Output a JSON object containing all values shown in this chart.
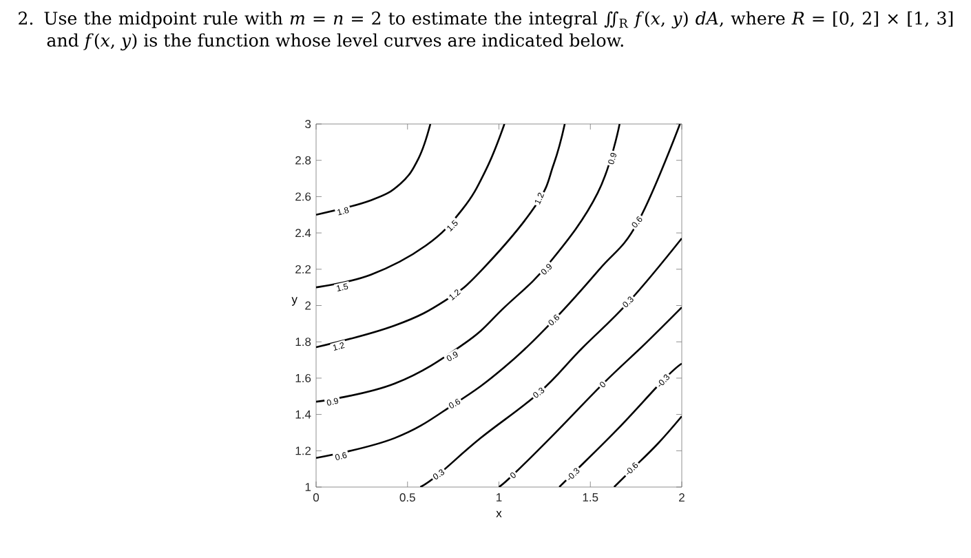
{
  "chart_data": {
    "type": "line",
    "title": "2. Use the midpoint rule with *m* = *n* = 2 to estimate the integral ∬$_{R}$ *f*(*x*, *y*) *dA*, where *R* = [0, 2] × [1, 3] and *f*(*x*, *y*) is the function whose level curves are indicated below.",
    "xlabel": "x",
    "ylabel": "y",
    "xlim": [
      0,
      2
    ],
    "ylim": [
      1,
      3
    ],
    "xticks": [
      0,
      0.5,
      1,
      1.5,
      2
    ],
    "yticks": [
      1,
      1.2,
      1.4,
      1.6,
      1.8,
      2,
      2.2,
      2.4,
      2.6,
      2.8,
      3
    ],
    "grid": false,
    "marker": "none",
    "line_style": "solid",
    "series": [
      {
        "color": "#000000",
        "x": [
          0,
          0.3,
          0.46,
          0.56,
          0.625
        ],
        "values": [
          2.5,
          2.58,
          2.67,
          2.81,
          3
        ]
      },
      {
        "color": "#000000",
        "x": [
          0,
          0.3,
          0.6,
          0.8,
          0.93,
          1.03
        ],
        "values": [
          2.1,
          2.17,
          2.33,
          2.53,
          2.75,
          3
        ]
      },
      {
        "color": "#000000",
        "x": [
          0,
          0.43,
          0.71,
          0.91,
          1.2,
          1.3,
          1.36
        ],
        "values": [
          1.77,
          1.89,
          2.03,
          2.2,
          2.55,
          2.78,
          3
        ]
      },
      {
        "color": "#000000",
        "x": [
          0,
          0.43,
          0.81,
          1.03,
          1.28,
          1.54,
          1.66
        ],
        "values": [
          1.47,
          1.57,
          1.79,
          1.99,
          2.24,
          2.62,
          3
        ]
      },
      {
        "color": "#000000",
        "x": [
          0,
          0.43,
          0.76,
          1.03,
          1.3,
          1.55,
          1.76,
          1.99
        ],
        "values": [
          1.16,
          1.27,
          1.46,
          1.66,
          1.92,
          2.2,
          2.46,
          3
        ]
      },
      {
        "color": "#000000",
        "x": [
          0.57,
          0.67,
          0.9,
          1.22,
          1.45,
          1.71,
          2
        ],
        "values": [
          1,
          1.07,
          1.27,
          1.52,
          1.76,
          2.02,
          2.37
        ]
      },
      {
        "color": "#000000",
        "x": [
          1,
          1.08,
          1.3,
          1.57,
          1.8,
          2
        ],
        "values": [
          1,
          1.07,
          1.29,
          1.57,
          1.79,
          1.99
        ]
      },
      {
        "color": "#000000",
        "x": [
          1.33,
          1.4,
          1.65,
          1.9,
          2
        ],
        "values": [
          1,
          1.07,
          1.32,
          1.59,
          1.68
        ]
      },
      {
        "color": "#000000",
        "x": [
          1.63,
          1.73,
          1.87,
          2
        ],
        "values": [
          1,
          1.1,
          1.24,
          1.39
        ]
      }
    ],
    "annotations": [
      {
        "text": "1.8",
        "x": 0.147,
        "y": 2.52
      },
      {
        "text": "1.5",
        "x": 0.143,
        "y": 2.1
      },
      {
        "text": "1.5",
        "x": 0.745,
        "y": 2.44
      },
      {
        "text": "1.2",
        "x": 0.123,
        "y": 1.775
      },
      {
        "text": "1.2",
        "x": 0.757,
        "y": 2.06
      },
      {
        "text": "1.2",
        "x": 1.22,
        "y": 2.59
      },
      {
        "text": "0.9",
        "x": 0.09,
        "y": 1.47
      },
      {
        "text": "0.9",
        "x": 0.745,
        "y": 1.72
      },
      {
        "text": "0.9",
        "x": 1.26,
        "y": 2.2
      },
      {
        "text": "0.9",
        "x": 1.62,
        "y": 2.81
      },
      {
        "text": "0.6",
        "x": 0.136,
        "y": 1.17
      },
      {
        "text": "0.6",
        "x": 0.757,
        "y": 1.46
      },
      {
        "text": "0.6",
        "x": 1.3,
        "y": 1.92
      },
      {
        "text": "0.6",
        "x": 1.755,
        "y": 2.46
      },
      {
        "text": "0.3",
        "x": 0.67,
        "y": 1.07
      },
      {
        "text": "0.3",
        "x": 1.217,
        "y": 1.52
      },
      {
        "text": "0.3",
        "x": 1.706,
        "y": 2.02
      },
      {
        "text": "0",
        "x": 1.077,
        "y": 1.065
      },
      {
        "text": "0",
        "x": 1.567,
        "y": 1.565
      },
      {
        "text": "-0.3",
        "x": 1.405,
        "y": 1.07
      },
      {
        "text": "-0.3",
        "x": 1.898,
        "y": 1.585
      },
      {
        "text": "-0.6",
        "x": 1.725,
        "y": 1.1
      }
    ]
  }
}
